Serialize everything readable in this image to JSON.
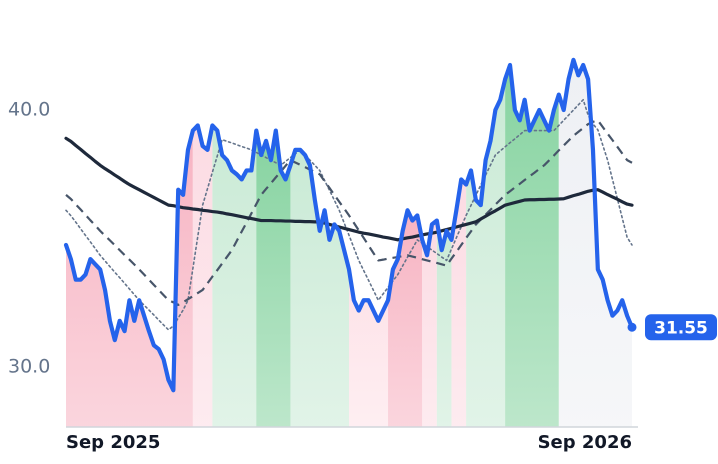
{
  "chart_data": {
    "type": "line",
    "categories": [
      "Sep 2025",
      null,
      null,
      null,
      null,
      null,
      null,
      null,
      null,
      null,
      null,
      null,
      null,
      null,
      null,
      null,
      null,
      null,
      null,
      null,
      null,
      null,
      null,
      null,
      null,
      null,
      null,
      null,
      null,
      null,
      null,
      null,
      null,
      null,
      null,
      null,
      null,
      null,
      null,
      null,
      null,
      null,
      null,
      null,
      null,
      null,
      null,
      null,
      null,
      null,
      null,
      null,
      null,
      null,
      null,
      null,
      null,
      null,
      null,
      null,
      null,
      null,
      null,
      null,
      null,
      null,
      null,
      null,
      null,
      null,
      null,
      null,
      null,
      null,
      null,
      null,
      null,
      null,
      null,
      null,
      null,
      null,
      null,
      null,
      null,
      null,
      null,
      null,
      null,
      null,
      null,
      null,
      null,
      null,
      null,
      null,
      null,
      null,
      null,
      null,
      null,
      null,
      null,
      null,
      null,
      null,
      null,
      null,
      null,
      null,
      null,
      null,
      null,
      null,
      null,
      null,
      "Sep 2026"
    ],
    "ylim": [
      27.67,
      44.28
    ],
    "yticks": [
      {
        "value": 30,
        "label": "30.0"
      },
      {
        "value": 40,
        "label": "40.0"
      }
    ],
    "regimes": [
      {
        "start": 0,
        "end": 26,
        "color": "#f7b3c2"
      },
      {
        "start": 26,
        "end": 30,
        "color": "#fcdbe3"
      },
      {
        "start": 30,
        "end": 39,
        "color": "#c9ead5"
      },
      {
        "start": 39,
        "end": 46,
        "color": "#86d3a0"
      },
      {
        "start": 46,
        "end": 58,
        "color": "#c9ead5"
      },
      {
        "start": 58,
        "end": 66,
        "color": "#fde1e7"
      },
      {
        "start": 66,
        "end": 73,
        "color": "#f7b3c2"
      },
      {
        "start": 73,
        "end": 76,
        "color": "#fcdbe3"
      },
      {
        "start": 76,
        "end": 79,
        "color": "#c9ead5"
      },
      {
        "start": 79,
        "end": 82,
        "color": "#fcdbe3"
      },
      {
        "start": 82,
        "end": 90,
        "color": "#c9ead5"
      },
      {
        "start": 90,
        "end": 101,
        "color": "#86d3a0"
      },
      {
        "start": 101,
        "end": 116,
        "color": "#eef0f4"
      }
    ],
    "series": [
      {
        "color": "#64748b",
        "style": "dotted",
        "values": [
          36.1,
          35.89,
          35.64,
          35.38,
          35.12,
          34.87,
          34.61,
          34.35,
          34.13,
          33.91,
          33.69,
          33.48,
          33.26,
          33.04,
          32.82,
          32.6,
          32.41,
          32.22,
          32.03,
          31.83,
          31.64,
          31.45,
          31.6,
          31.91,
          32.22,
          32.6,
          33.83,
          35.07,
          36.3,
          36.94,
          37.58,
          38.21,
          38.85,
          38.78,
          38.72,
          38.65,
          38.58,
          38.52,
          38.45,
          38.35,
          38.25,
          38.15,
          38.05,
          37.95,
          37.85,
          38.0,
          38.15,
          38.3,
          38.45,
          38.25,
          38.05,
          37.85,
          37.65,
          37.26,
          36.88,
          36.49,
          36.1,
          35.61,
          35.13,
          34.64,
          34.15,
          33.76,
          33.38,
          32.99,
          32.6,
          32.85,
          33.1,
          33.35,
          33.6,
          33.94,
          34.28,
          34.61,
          34.95,
          34.82,
          34.68,
          34.55,
          34.42,
          34.28,
          34.15,
          34.59,
          35.03,
          35.46,
          35.9,
          36.29,
          36.68,
          37.08,
          37.47,
          37.86,
          38.25,
          38.41,
          38.57,
          38.73,
          38.88,
          39.04,
          39.2,
          39.2,
          39.2,
          39.2,
          39.2,
          39.2,
          39.2,
          39.4,
          39.6,
          39.8,
          40.0,
          40.2,
          40.4,
          39.81,
          39.46,
          39.23,
          38.64,
          38.05,
          37.3,
          36.55,
          35.8,
          35.05,
          34.75
        ]
      },
      {
        "color": "#475569",
        "style": "dashed",
        "values": [
          36.7,
          36.54,
          36.33,
          36.13,
          35.92,
          35.71,
          35.51,
          35.3,
          35.11,
          34.93,
          34.74,
          34.55,
          34.36,
          34.18,
          33.99,
          33.8,
          33.6,
          33.4,
          33.2,
          33.0,
          32.8,
          32.6,
          32.52,
          32.42,
          32.52,
          32.64,
          32.76,
          32.88,
          33.0,
          33.26,
          33.52,
          33.77,
          34.03,
          34.29,
          34.55,
          34.91,
          35.27,
          35.62,
          35.98,
          36.34,
          36.7,
          36.93,
          37.15,
          37.38,
          37.6,
          37.83,
          38.05,
          37.96,
          37.87,
          37.78,
          37.68,
          37.59,
          37.5,
          37.23,
          36.97,
          36.7,
          36.43,
          36.17,
          35.9,
          35.61,
          35.32,
          35.03,
          34.73,
          34.44,
          34.15,
          34.18,
          34.22,
          34.25,
          34.28,
          34.32,
          34.35,
          34.3,
          34.25,
          34.2,
          34.15,
          34.1,
          34.05,
          34.0,
          33.95,
          34.22,
          34.48,
          34.75,
          35.02,
          35.28,
          35.55,
          35.74,
          35.93,
          36.12,
          36.32,
          36.51,
          36.7,
          36.84,
          36.99,
          37.13,
          37.28,
          37.42,
          37.56,
          37.71,
          37.85,
          38.04,
          38.23,
          38.43,
          38.62,
          38.81,
          39.0,
          39.15,
          39.3,
          39.45,
          39.54,
          39.6,
          39.34,
          39.08,
          38.83,
          38.57,
          38.31,
          38.05,
          37.95
        ]
      },
      {
        "color": "#1e293b",
        "style": "solid",
        "values": [
          38.9,
          38.78,
          38.62,
          38.47,
          38.31,
          38.16,
          38.0,
          37.85,
          37.72,
          37.6,
          37.47,
          37.35,
          37.22,
          37.1,
          37.0,
          36.9,
          36.8,
          36.7,
          36.6,
          36.5,
          36.4,
          36.3,
          36.28,
          36.24,
          36.2,
          36.18,
          36.15,
          36.13,
          36.1,
          36.08,
          36.05,
          36.03,
          36.0,
          35.96,
          35.93,
          35.89,
          35.85,
          35.81,
          35.78,
          35.74,
          35.7,
          35.7,
          35.7,
          35.69,
          35.69,
          35.68,
          35.68,
          35.67,
          35.67,
          35.66,
          35.66,
          35.65,
          35.65,
          35.6,
          35.55,
          35.5,
          35.45,
          35.4,
          35.35,
          35.3,
          35.25,
          35.21,
          35.18,
          35.14,
          35.1,
          35.06,
          35.03,
          34.99,
          34.95,
          34.99,
          35.03,
          35.06,
          35.1,
          35.14,
          35.18,
          35.21,
          35.25,
          35.3,
          35.35,
          35.4,
          35.45,
          35.5,
          35.55,
          35.6,
          35.65,
          35.76,
          35.87,
          35.98,
          36.08,
          36.19,
          36.3,
          36.35,
          36.4,
          36.45,
          36.5,
          36.51,
          36.51,
          36.52,
          36.52,
          36.53,
          36.53,
          36.54,
          36.55,
          36.61,
          36.67,
          36.72,
          36.78,
          36.84,
          36.88,
          36.9,
          36.81,
          36.71,
          36.62,
          36.53,
          36.43,
          36.34,
          36.3
        ]
      },
      {
        "color": "#2563eb",
        "style": "price",
        "values": [
          34.75,
          34.2,
          33.4,
          33.4,
          33.6,
          34.2,
          34.0,
          33.8,
          33.0,
          31.8,
          31.05,
          31.8,
          31.4,
          32.6,
          31.8,
          32.6,
          32.0,
          31.4,
          30.85,
          30.7,
          30.3,
          29.5,
          29.1,
          36.9,
          36.7,
          38.45,
          39.2,
          39.4,
          38.6,
          38.45,
          39.4,
          39.2,
          38.25,
          38.05,
          37.65,
          37.5,
          37.3,
          37.65,
          37.65,
          39.2,
          38.25,
          38.8,
          38.05,
          39.2,
          37.65,
          37.3,
          37.85,
          38.45,
          38.45,
          38.25,
          37.85,
          36.5,
          35.3,
          36.1,
          34.95,
          35.55,
          35.3,
          34.55,
          33.8,
          32.6,
          32.2,
          32.6,
          32.6,
          32.2,
          31.8,
          32.2,
          32.6,
          33.8,
          34.2,
          35.3,
          36.1,
          35.7,
          35.9,
          34.95,
          34.35,
          35.55,
          35.7,
          34.55,
          35.3,
          34.95,
          36.1,
          37.3,
          37.1,
          37.65,
          36.5,
          36.3,
          38.05,
          38.8,
          40.0,
          40.4,
          41.2,
          41.75,
          40.0,
          39.6,
          40.4,
          39.2,
          39.6,
          40.0,
          39.6,
          39.2,
          40.0,
          40.6,
          40.0,
          41.2,
          41.95,
          41.35,
          41.75,
          41.2,
          38.45,
          33.8,
          33.4,
          32.6,
          32.0,
          32.2,
          32.6,
          32.0,
          31.55
        ]
      }
    ]
  }
}
